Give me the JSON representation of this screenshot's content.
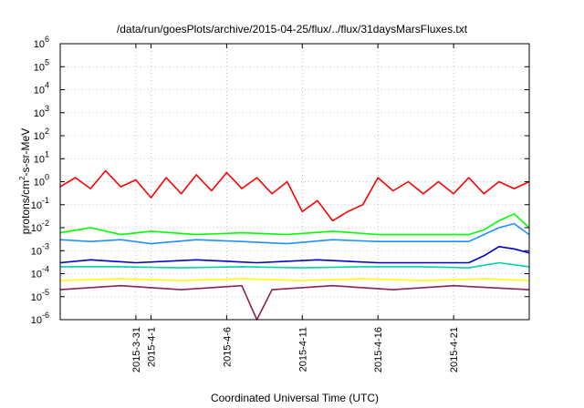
{
  "chart_data": {
    "type": "line",
    "title": "/data/run/goesPlots/archive/2015-04-25/flux/../flux/31daysMarsFluxes.txt",
    "xlabel": "Coordinated Universal Time (UTC)",
    "ylabel_parts": {
      "base": "protons/cm",
      "sup": "2",
      "rest": "-s-sr-MeV"
    },
    "yscale": "log",
    "ylim_exponents": [
      -6,
      6
    ],
    "y_tick_base": "10",
    "y_tick_exponents": [
      "-6",
      "-5",
      "-4",
      "-3",
      "-2",
      "-1",
      "0",
      "1",
      "2",
      "3",
      "4",
      "5",
      "6"
    ],
    "xlim": [
      "2015-03-26",
      "2015-04-26"
    ],
    "x_tick_labels": [
      {
        "date": "2015-03-31",
        "label": "2015-3-31"
      },
      {
        "date": "2015-04-01",
        "label": "2015-4-1"
      },
      {
        "date": "2015-04-06",
        "label": "2015-4-6"
      },
      {
        "date": "2015-04-11",
        "label": "2015-4-11"
      },
      {
        "date": "2015-04-16",
        "label": "2015-4-16"
      },
      {
        "date": "2015-04-21",
        "label": "2015-4-21"
      }
    ],
    "grid": true,
    "series": [
      {
        "color": "#ff0000",
        "points": [
          [
            "2015-03-26",
            0.6
          ],
          [
            "2015-03-27",
            1.5
          ],
          [
            "2015-03-28",
            0.5
          ],
          [
            "2015-03-29",
            3.0
          ],
          [
            "2015-03-30",
            0.6
          ],
          [
            "2015-03-31",
            1.2
          ],
          [
            "2015-04-01",
            0.2
          ],
          [
            "2015-04-02",
            1.5
          ],
          [
            "2015-04-03",
            0.3
          ],
          [
            "2015-04-04",
            2.0
          ],
          [
            "2015-04-05",
            0.4
          ],
          [
            "2015-04-06",
            2.5
          ],
          [
            "2015-04-07",
            0.5
          ],
          [
            "2015-04-08",
            1.5
          ],
          [
            "2015-04-09",
            0.3
          ],
          [
            "2015-04-10",
            1.0
          ],
          [
            "2015-04-11",
            0.05
          ],
          [
            "2015-04-12",
            0.15
          ],
          [
            "2015-04-13",
            0.02
          ],
          [
            "2015-04-14",
            0.05
          ],
          [
            "2015-04-15",
            0.1
          ],
          [
            "2015-04-16",
            1.5
          ],
          [
            "2015-04-17",
            0.4
          ],
          [
            "2015-04-18",
            1.0
          ],
          [
            "2015-04-19",
            0.3
          ],
          [
            "2015-04-20",
            1.0
          ],
          [
            "2015-04-21",
            0.3
          ],
          [
            "2015-04-22",
            1.5
          ],
          [
            "2015-04-23",
            0.3
          ],
          [
            "2015-04-24",
            1.0
          ],
          [
            "2015-04-25",
            0.5
          ],
          [
            "2015-04-26",
            1.0
          ]
        ]
      },
      {
        "color": "#00ff00",
        "points": [
          [
            "2015-03-26",
            0.006
          ],
          [
            "2015-03-28",
            0.01
          ],
          [
            "2015-03-30",
            0.005
          ],
          [
            "2015-04-01",
            0.007
          ],
          [
            "2015-04-04",
            0.005
          ],
          [
            "2015-04-07",
            0.006
          ],
          [
            "2015-04-10",
            0.005
          ],
          [
            "2015-04-13",
            0.007
          ],
          [
            "2015-04-16",
            0.005
          ],
          [
            "2015-04-19",
            0.005
          ],
          [
            "2015-04-22",
            0.005
          ],
          [
            "2015-04-23",
            0.008
          ],
          [
            "2015-04-24",
            0.02
          ],
          [
            "2015-04-25",
            0.04
          ],
          [
            "2015-04-26",
            0.01
          ]
        ]
      },
      {
        "color": "#1e90ff",
        "points": [
          [
            "2015-03-26",
            0.003
          ],
          [
            "2015-03-28",
            0.0025
          ],
          [
            "2015-03-30",
            0.003
          ],
          [
            "2015-04-01",
            0.002
          ],
          [
            "2015-04-04",
            0.003
          ],
          [
            "2015-04-07",
            0.0025
          ],
          [
            "2015-04-10",
            0.002
          ],
          [
            "2015-04-13",
            0.003
          ],
          [
            "2015-04-16",
            0.0025
          ],
          [
            "2015-04-19",
            0.0025
          ],
          [
            "2015-04-22",
            0.0025
          ],
          [
            "2015-04-23",
            0.005
          ],
          [
            "2015-04-24",
            0.01
          ],
          [
            "2015-04-25",
            0.015
          ],
          [
            "2015-04-26",
            0.005
          ]
        ]
      },
      {
        "color": "#0000cd",
        "points": [
          [
            "2015-03-26",
            0.0003
          ],
          [
            "2015-03-28",
            0.0004
          ],
          [
            "2015-03-31",
            0.0003
          ],
          [
            "2015-04-04",
            0.0004
          ],
          [
            "2015-04-08",
            0.0003
          ],
          [
            "2015-04-12",
            0.0004
          ],
          [
            "2015-04-16",
            0.0003
          ],
          [
            "2015-04-20",
            0.0003
          ],
          [
            "2015-04-22",
            0.0003
          ],
          [
            "2015-04-23",
            0.0006
          ],
          [
            "2015-04-24",
            0.0015
          ],
          [
            "2015-04-25",
            0.0012
          ],
          [
            "2015-04-26",
            0.0008
          ]
        ]
      },
      {
        "color": "#00d4a0",
        "points": [
          [
            "2015-03-26",
            0.0002
          ],
          [
            "2015-03-30",
            0.0002
          ],
          [
            "2015-04-03",
            0.00018
          ],
          [
            "2015-04-07",
            0.0002
          ],
          [
            "2015-04-11",
            0.00018
          ],
          [
            "2015-04-15",
            0.0002
          ],
          [
            "2015-04-19",
            0.0002
          ],
          [
            "2015-04-22",
            0.00018
          ],
          [
            "2015-04-24",
            0.0003
          ],
          [
            "2015-04-26",
            0.0002
          ]
        ]
      },
      {
        "color": "#ffff00",
        "points": [
          [
            "2015-03-26",
            5e-05
          ],
          [
            "2015-03-30",
            6e-05
          ],
          [
            "2015-04-03",
            5e-05
          ],
          [
            "2015-04-07",
            6e-05
          ],
          [
            "2015-04-11",
            5e-05
          ],
          [
            "2015-04-15",
            6e-05
          ],
          [
            "2015-04-19",
            5e-05
          ],
          [
            "2015-04-23",
            6e-05
          ],
          [
            "2015-04-26",
            5e-05
          ]
        ]
      },
      {
        "color": "#8b2252",
        "points": [
          [
            "2015-03-26",
            2e-05
          ],
          [
            "2015-03-30",
            3e-05
          ],
          [
            "2015-04-03",
            2e-05
          ],
          [
            "2015-04-07",
            3e-05
          ],
          [
            "2015-04-08",
            1e-06
          ],
          [
            "2015-04-09",
            2e-05
          ],
          [
            "2015-04-13",
            3e-05
          ],
          [
            "2015-04-17",
            2e-05
          ],
          [
            "2015-04-21",
            3e-05
          ],
          [
            "2015-04-26",
            2e-05
          ]
        ]
      }
    ]
  }
}
